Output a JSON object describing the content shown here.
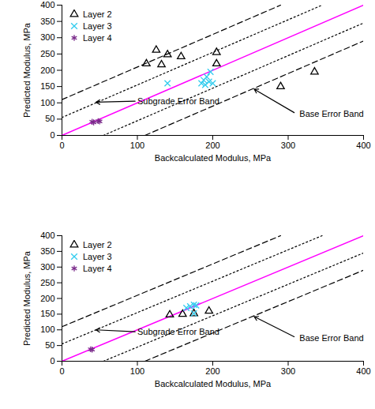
{
  "chart_data": [
    {
      "type": "scatter",
      "xlabel": "Backcalculated Modulus, MPa",
      "ylabel": "Predicted Modulus, MPa",
      "xlim": [
        0,
        400
      ],
      "ylim": [
        0,
        400
      ],
      "xticks": [
        0,
        100,
        200,
        300,
        400
      ],
      "yticks": [
        0,
        50,
        100,
        150,
        200,
        250,
        300,
        350,
        400
      ],
      "grid": false,
      "legend": "upper left",
      "series": [
        {
          "name": "Layer 2",
          "color": "#000000",
          "marker": "triangle",
          "x": [
            112,
            125,
            132,
            140,
            158,
            205,
            205,
            290,
            335
          ],
          "values": [
            220,
            262,
            217,
            248,
            242,
            255,
            220,
            150,
            195
          ]
        },
        {
          "name": "Layer 3",
          "color": "#33ccee",
          "marker": "x",
          "x": [
            140,
            185,
            188,
            192,
            195,
            197,
            200,
            190
          ],
          "values": [
            160,
            160,
            170,
            180,
            165,
            195,
            160,
            155
          ]
        },
        {
          "name": "Layer 4",
          "color": "#7a2a8a",
          "marker": "star",
          "x": [
            40,
            42,
            48,
            50
          ],
          "values": [
            42,
            40,
            44,
            43
          ]
        }
      ],
      "lines": [
        {
          "x": [
            0,
            400
          ],
          "values": [
            0,
            400
          ],
          "color": "#ff00ff",
          "line_style": "solid"
        },
        {
          "x": [
            0,
            345
          ],
          "values": [
            55,
            400
          ],
          "color": "#000000",
          "line_style": "dotted"
        },
        {
          "x": [
            55,
            400
          ],
          "values": [
            0,
            345
          ],
          "color": "#000000",
          "line_style": "dotted"
        },
        {
          "x": [
            0,
            290
          ],
          "values": [
            110,
            400
          ],
          "color": "#000000",
          "line_style": "dashed"
        },
        {
          "x": [
            110,
            400
          ],
          "values": [
            0,
            290
          ],
          "color": "#000000",
          "line_style": "dashed"
        }
      ],
      "annotations": [
        {
          "text": "Base Error Band",
          "x": 315,
          "y": 65,
          "arrow_from": [
            308,
            70
          ],
          "arrow_to": [
            255,
            142
          ]
        },
        {
          "text": "Subgrade Error Band",
          "x": 100,
          "y": 105,
          "arrow_from": [
            97,
            105
          ],
          "arrow_to": [
            45,
            102
          ]
        }
      ]
    },
    {
      "type": "scatter",
      "xlabel": "Backcalculated Modulus, MPa",
      "ylabel": "Predicted Modulus, MPa",
      "xlim": [
        0,
        400
      ],
      "ylim": [
        0,
        400
      ],
      "xticks": [
        0,
        100,
        200,
        300,
        400
      ],
      "yticks": [
        0,
        50,
        100,
        150,
        200,
        250,
        300,
        350,
        400
      ],
      "grid": false,
      "legend": "upper left",
      "series": [
        {
          "name": "Layer 2",
          "color": "#000000",
          "marker": "triangle",
          "x": [
            143,
            160,
            175,
            195
          ],
          "values": [
            148,
            150,
            152,
            160
          ]
        },
        {
          "name": "Layer 3",
          "color": "#33ccee",
          "marker": "x",
          "x": [
            165,
            170,
            175,
            178,
            175
          ],
          "values": [
            170,
            175,
            180,
            178,
            152
          ]
        },
        {
          "name": "Layer 4",
          "color": "#7a2a8a",
          "marker": "star",
          "x": [
            38,
            40
          ],
          "values": [
            38,
            37
          ]
        }
      ],
      "lines": [
        {
          "x": [
            0,
            400
          ],
          "values": [
            0,
            400
          ],
          "color": "#ff00ff",
          "line_style": "solid"
        },
        {
          "x": [
            0,
            345
          ],
          "values": [
            55,
            400
          ],
          "color": "#000000",
          "line_style": "dotted"
        },
        {
          "x": [
            55,
            400
          ],
          "values": [
            0,
            345
          ],
          "color": "#000000",
          "line_style": "dotted"
        },
        {
          "x": [
            0,
            290
          ],
          "values": [
            110,
            400
          ],
          "color": "#000000",
          "line_style": "dashed"
        },
        {
          "x": [
            110,
            400
          ],
          "values": [
            0,
            290
          ],
          "color": "#000000",
          "line_style": "dashed"
        }
      ],
      "annotations": [
        {
          "text": "Base Error Band",
          "x": 315,
          "y": 73,
          "arrow_from": [
            308,
            78
          ],
          "arrow_to": [
            255,
            142
          ]
        },
        {
          "text": "Subgrade Error Band",
          "x": 100,
          "y": 92,
          "arrow_from": [
            97,
            94
          ],
          "arrow_to": [
            45,
            100
          ]
        }
      ]
    }
  ]
}
